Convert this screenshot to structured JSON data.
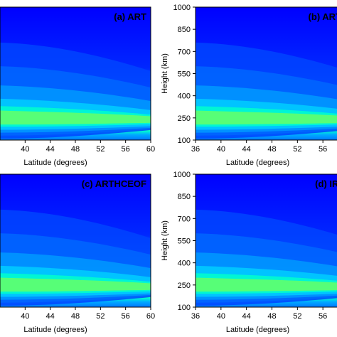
{
  "chart_data": [
    {
      "type": "heatmap",
      "panel_label": "(a) ART",
      "xlabel": "Latitude (degrees)",
      "ylabel": "",
      "xlim": [
        36,
        60
      ],
      "ylim": [
        100,
        1000
      ],
      "x_ticks": [
        40,
        44,
        48,
        52,
        56,
        60
      ],
      "y_ticks": [],
      "peak_height_km": 250,
      "peak_latitude": 36,
      "colormap": [
        "#0033ff",
        "#0066ff",
        "#0099ff",
        "#00ccff",
        "#00ffcc",
        "#66ff66",
        "#ccff33",
        "#ffee00",
        "#ff9900",
        "#ff3300",
        "#cc0000"
      ]
    },
    {
      "type": "heatmap",
      "panel_label": "(b) ART",
      "xlabel": "Latitude (degrees)",
      "ylabel": "Height (km)",
      "xlim": [
        36,
        60
      ],
      "ylim": [
        100,
        1000
      ],
      "x_ticks": [
        36,
        40,
        44,
        48,
        52,
        56
      ],
      "y_ticks": [
        100,
        250,
        400,
        550,
        700,
        850,
        1000
      ],
      "peak_height_km": 250,
      "peak_latitude": 36,
      "colormap": [
        "#0033ff",
        "#0066ff",
        "#0099ff",
        "#00ccff",
        "#00ffcc",
        "#66ff66",
        "#ccff33",
        "#ffee00",
        "#ff9900",
        "#ff3300",
        "#cc0000"
      ]
    },
    {
      "type": "heatmap",
      "panel_label": "(c) ARTHCEOF",
      "xlabel": "Latitude (degrees)",
      "ylabel": "",
      "xlim": [
        36,
        60
      ],
      "ylim": [
        100,
        1000
      ],
      "x_ticks": [
        40,
        44,
        48,
        52,
        56,
        60
      ],
      "y_ticks": [],
      "peak_height_km": 250,
      "peak_latitude": 36,
      "colormap": [
        "#0033ff",
        "#0066ff",
        "#0099ff",
        "#00ccff",
        "#00ffcc",
        "#66ff66",
        "#ccff33",
        "#ffee00",
        "#ff9900",
        "#ff3300",
        "#cc0000"
      ]
    },
    {
      "type": "heatmap",
      "panel_label": "(d) IRI",
      "xlabel": "Latitude (degrees)",
      "ylabel": "Height (km)",
      "xlim": [
        36,
        60
      ],
      "ylim": [
        100,
        1000
      ],
      "x_ticks": [
        36,
        40,
        44,
        48,
        52,
        56
      ],
      "y_ticks": [
        100,
        250,
        400,
        550,
        700,
        850,
        1000
      ],
      "peak_height_km": 250,
      "peak_latitude": 36,
      "colormap": [
        "#0033ff",
        "#0066ff",
        "#0099ff",
        "#00ccff",
        "#00ffcc",
        "#66ff66",
        "#ccff33",
        "#ffee00",
        "#ff9900",
        "#ff3300",
        "#cc0000"
      ]
    }
  ]
}
